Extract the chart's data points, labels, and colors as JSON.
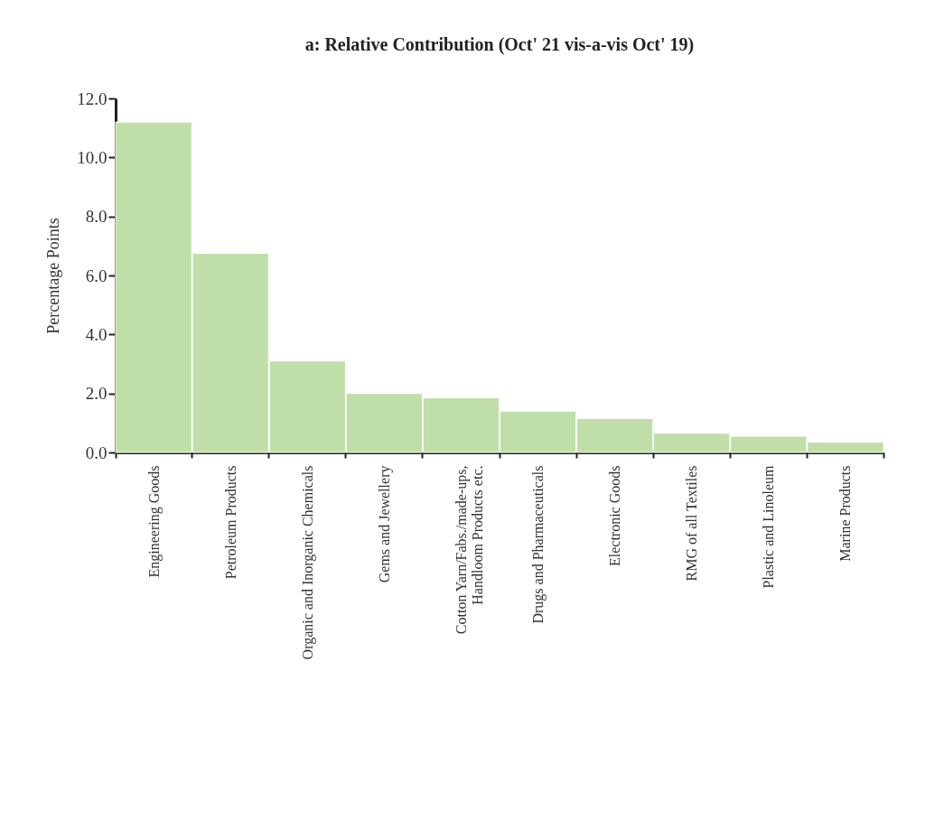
{
  "chart_data": {
    "type": "bar",
    "title": "a: Relative Contribution (Oct' 21 vis-a-vis Oct' 19)",
    "ylabel": "Percentage Points",
    "categories": [
      "Engineering Goods",
      "Petroleum Products",
      "Organic and Inorganic Chemicals",
      "Gems and Jewellery",
      "Cotton Yarn/Fabs./made-ups,\nHandloom Products etc.",
      "Drugs and Pharmaceuticals",
      "Electronic Goods",
      "RMG of all Textiles",
      "Plastic and Linoleum",
      "Marine Products"
    ],
    "values": [
      11.2,
      6.75,
      3.1,
      2.0,
      1.85,
      1.4,
      1.15,
      0.65,
      0.55,
      0.35
    ],
    "color": "#c0dfa8",
    "ylim": [
      0,
      12
    ],
    "yticks": [
      {
        "value": 0,
        "label": "0.0"
      },
      {
        "value": 2,
        "label": "2.0"
      },
      {
        "value": 4,
        "label": "4.0"
      },
      {
        "value": 6,
        "label": "6.0"
      },
      {
        "value": 8,
        "label": "8.0"
      },
      {
        "value": 10,
        "label": "10.0"
      },
      {
        "value": 12,
        "label": "12.0"
      }
    ],
    "grid": false
  }
}
